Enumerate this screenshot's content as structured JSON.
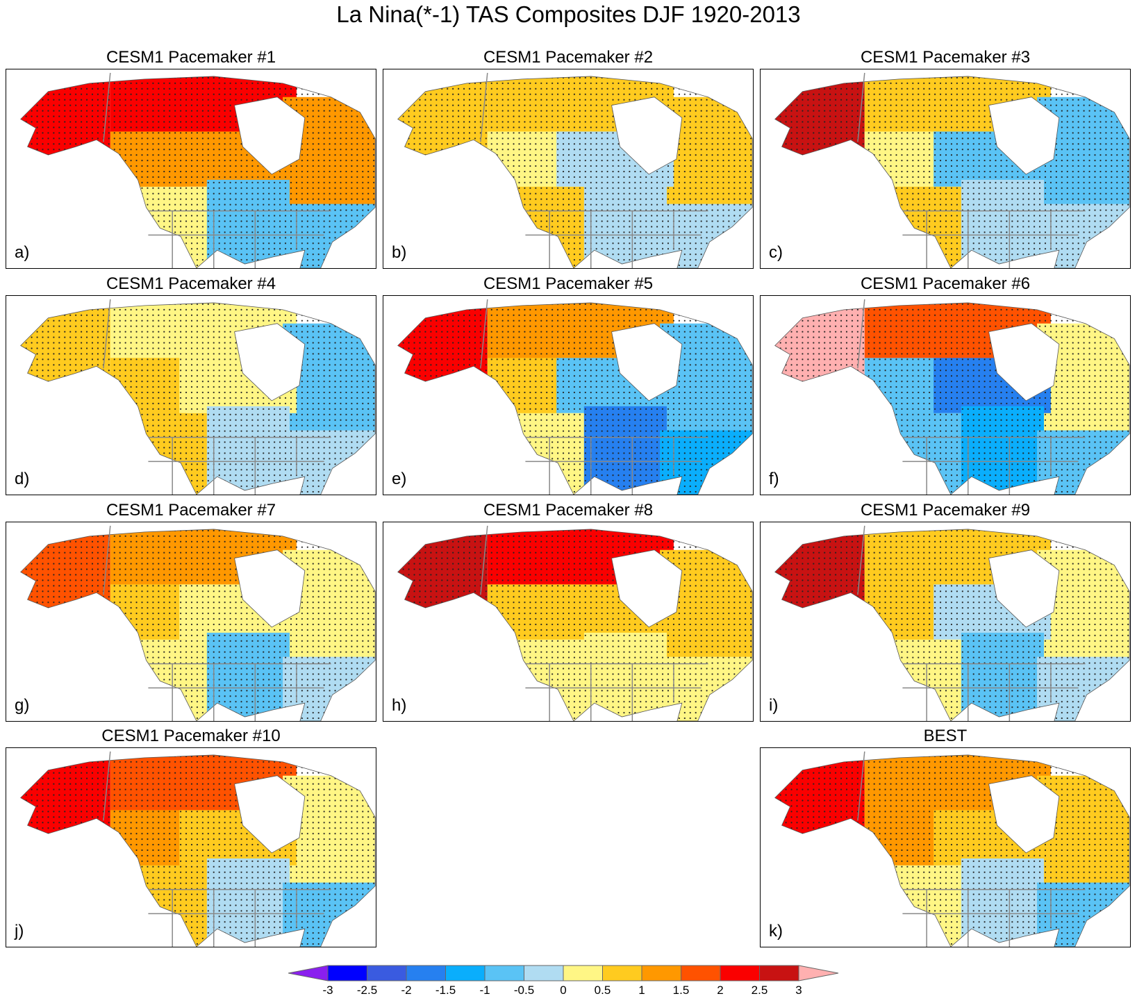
{
  "title": "La Nina(*-1) TAS Composites DJF 1920-2013",
  "colorbar": {
    "levels": [
      "-3",
      "-2.5",
      "-2",
      "-1.5",
      "-1",
      "-0.5",
      "0",
      "0.5",
      "1",
      "1.5",
      "2",
      "2.5",
      "3"
    ],
    "colors": [
      "#8a1fee",
      "#0000ff",
      "#3a5be0",
      "#2680f0",
      "#0aaefc",
      "#5ac3f5",
      "#b0dcf2",
      "#fff685",
      "#ffcb1f",
      "#ff9800",
      "#ff5200",
      "#fa0000",
      "#c81212",
      "#ffb0b0"
    ]
  },
  "region_order": [
    "alaska",
    "north_canada",
    "east_canada",
    "west_canada",
    "central_canada",
    "west_us",
    "central_us",
    "east_us"
  ],
  "panels": [
    {
      "title": "CESM1 Pacemaker #1",
      "label": "a)",
      "values": [
        2.2,
        2.2,
        1.2,
        1.2,
        1.2,
        0.2,
        -0.7,
        -0.7
      ]
    },
    {
      "title": "CESM1 Pacemaker #2",
      "label": "b)",
      "values": [
        0.7,
        0.7,
        0.7,
        0.2,
        -0.3,
        0.7,
        -0.3,
        -0.3
      ]
    },
    {
      "title": "CESM1 Pacemaker #3",
      "label": "c)",
      "values": [
        2.7,
        0.7,
        -0.7,
        0.2,
        -0.7,
        0.7,
        -0.3,
        -0.3
      ]
    },
    {
      "title": "CESM1 Pacemaker #4",
      "label": "d)",
      "values": [
        0.7,
        0.2,
        -0.7,
        0.7,
        0.2,
        0.7,
        -0.3,
        -0.3
      ]
    },
    {
      "title": "CESM1 Pacemaker #5",
      "label": "e)",
      "values": [
        2.2,
        1.2,
        -0.7,
        0.7,
        -0.7,
        0.2,
        -1.7,
        -1.2
      ]
    },
    {
      "title": "CESM1 Pacemaker #6",
      "label": "f)",
      "values": [
        3.2,
        1.7,
        0.2,
        -0.7,
        -1.7,
        -0.7,
        -1.2,
        -0.7
      ]
    },
    {
      "title": "CESM1 Pacemaker #7",
      "label": "g)",
      "values": [
        1.7,
        1.2,
        0.2,
        0.7,
        0.2,
        0.2,
        -0.7,
        -0.3
      ]
    },
    {
      "title": "CESM1 Pacemaker #8",
      "label": "h)",
      "values": [
        2.7,
        2.2,
        0.7,
        0.7,
        0.7,
        0.2,
        0.2,
        0.2
      ]
    },
    {
      "title": "CESM1 Pacemaker #9",
      "label": "i)",
      "values": [
        2.7,
        0.7,
        0.2,
        0.7,
        -0.3,
        0.2,
        -0.7,
        -0.3
      ]
    },
    {
      "title": "CESM1 Pacemaker #10",
      "label": "j)",
      "values": [
        2.2,
        1.7,
        0.2,
        1.2,
        0.7,
        0.7,
        -0.3,
        -0.7
      ]
    },
    {
      "title": "BEST",
      "label": "k)",
      "values": [
        2.2,
        1.2,
        0.7,
        1.2,
        0.7,
        0.2,
        -0.3,
        -0.7
      ]
    }
  ]
}
